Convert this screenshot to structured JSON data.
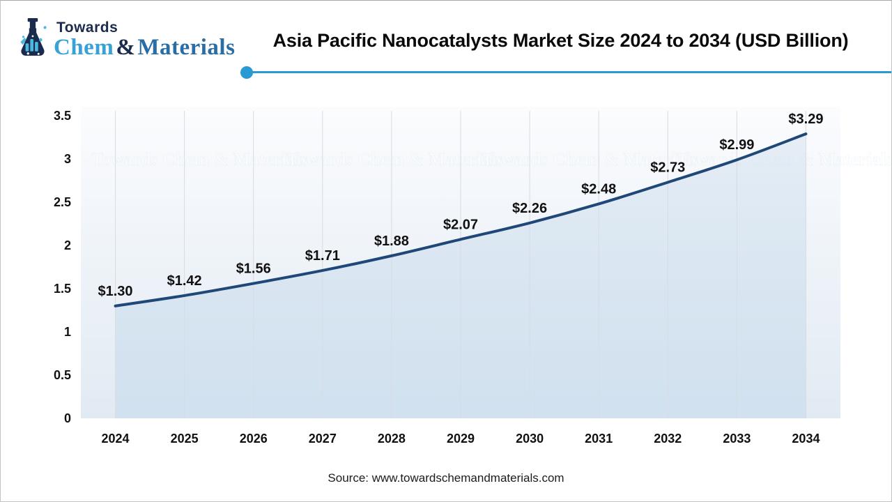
{
  "brand": {
    "towards": "Towards",
    "chem": "Chem",
    "amp": "&",
    "materials": "Materials"
  },
  "header": {
    "title": "Asia Pacific Nanocatalysts Market Size 2024 to 2034 (USD Billion)"
  },
  "watermark": {
    "text": "Towards Chem & Materials"
  },
  "footer": {
    "source": "Source: www.towardschemandmaterials.com"
  },
  "colors": {
    "accent_blue": "#2a9ad2",
    "navy": "#1b2b4d",
    "chem_blue": "#38a2d7",
    "materials_blue": "#2a6da5",
    "line_navy": "#1f4777",
    "area_fill": "#cfdfee",
    "plot_bg_top": "#fbfcfe",
    "plot_bg_bottom": "#e1eaf3",
    "gridline": "#d7dce2",
    "label_text": "#111111",
    "flask_liquid": "#49b9e2"
  },
  "chart_data": {
    "type": "area",
    "title": "Asia Pacific Nanocatalysts Market Size 2024 to 2034 (USD Billion)",
    "categories": [
      "2024",
      "2025",
      "2026",
      "2027",
      "2028",
      "2029",
      "2030",
      "2031",
      "2032",
      "2033",
      "2034"
    ],
    "values": [
      1.3,
      1.42,
      1.56,
      1.71,
      1.88,
      2.07,
      2.26,
      2.48,
      2.73,
      2.99,
      3.29
    ],
    "data_labels": [
      "$1.30",
      "$1.42",
      "$1.56",
      "$1.71",
      "$1.88",
      "$2.07",
      "$2.26",
      "$2.48",
      "$2.73",
      "$2.99",
      "$3.29"
    ],
    "xlabel": "",
    "ylabel": "",
    "ylim": [
      0,
      3.5
    ],
    "ytick_step": 0.5,
    "ytick_labels": [
      "0",
      "0.5",
      "1",
      "1.5",
      "2",
      "2.5",
      "3",
      "3.5"
    ],
    "gridlines": "vertical-only",
    "legend": false,
    "units": "USD Billion"
  }
}
